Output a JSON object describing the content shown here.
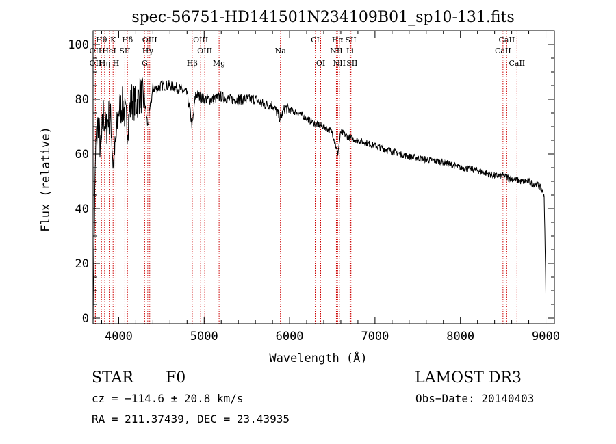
{
  "chart_data": {
    "type": "line",
    "title": "spec-56751-HD141501N234109B01_sp10-131.fits",
    "xlabel": "Wavelength (Å)",
    "ylabel": "Flux (relative)",
    "xlim": [
      3700,
      9100
    ],
    "ylim": [
      -2,
      105
    ],
    "xticks": [
      4000,
      5000,
      6000,
      7000,
      8000,
      9000
    ],
    "xtick_labels": [
      "4000",
      "5000",
      "6000",
      "7000",
      "8000",
      "9000"
    ],
    "yticks": [
      0,
      20,
      40,
      60,
      80,
      100
    ],
    "ytick_labels": [
      "0",
      "20",
      "40",
      "60",
      "80",
      "100"
    ],
    "grid": false,
    "series": [
      {
        "name": "flux",
        "color": "#000000",
        "x": [
          3700,
          3730,
          3760,
          3790,
          3820,
          3850,
          3880,
          3910,
          3935,
          3968,
          4000,
          4050,
          4102,
          4150,
          4200,
          4250,
          4300,
          4340,
          4400,
          4450,
          4500,
          4600,
          4700,
          4800,
          4861,
          4900,
          5000,
          5100,
          5200,
          5300,
          5400,
          5500,
          5600,
          5700,
          5800,
          5890,
          5950,
          6000,
          6100,
          6200,
          6300,
          6400,
          6500,
          6563,
          6600,
          6700,
          6800,
          6900,
          7000,
          7200,
          7400,
          7600,
          7800,
          8000,
          8200,
          8400,
          8500,
          8600,
          8700,
          8800,
          8850,
          8900,
          8950,
          8980,
          9000
        ],
        "y": [
          5,
          62,
          72,
          60,
          75,
          68,
          74,
          72,
          55,
          65,
          76,
          78,
          70,
          80,
          78,
          82,
          80,
          70,
          84,
          84,
          85,
          85,
          84,
          82,
          70,
          82,
          80,
          80,
          81,
          80,
          80,
          80,
          80,
          78,
          78,
          73,
          77,
          76,
          75,
          73,
          71,
          70,
          68,
          60,
          68,
          66,
          65,
          64,
          63,
          61,
          59,
          58,
          57,
          55,
          54,
          52,
          52,
          51,
          50,
          50,
          49,
          49,
          47,
          45,
          10
        ]
      }
    ],
    "annotations": [
      {
        "label": "Hθ",
        "x": 3798,
        "row": 1
      },
      {
        "label": "K",
        "x": 3934,
        "row": 1
      },
      {
        "label": "Hδ",
        "x": 4102,
        "row": 1
      },
      {
        "label": "OIII",
        "x": 4363,
        "row": 1
      },
      {
        "label": "OIII",
        "x": 4959,
        "row": 1
      },
      {
        "label": "CI",
        "x": 6300,
        "row": 1
      },
      {
        "label": "Hα",
        "x": 6563,
        "row": 1
      },
      {
        "label": "SII",
        "x": 6717,
        "row": 1
      },
      {
        "label": "CaII",
        "x": 8542,
        "row": 1
      },
      {
        "label": "OII",
        "x": 3727,
        "row": 2
      },
      {
        "label": "HeI",
        "x": 3889,
        "row": 2
      },
      {
        "label": "SII",
        "x": 4072,
        "row": 2
      },
      {
        "label": "Hγ",
        "x": 4340,
        "row": 2
      },
      {
        "label": "OIII",
        "x": 5007,
        "row": 2
      },
      {
        "label": "Na",
        "x": 5893,
        "row": 2
      },
      {
        "label": "NII",
        "x": 6548,
        "row": 2
      },
      {
        "label": "Li",
        "x": 6708,
        "row": 2
      },
      {
        "label": "CaII",
        "x": 8498,
        "row": 2
      },
      {
        "label": "OII",
        "x": 3727,
        "row": 3
      },
      {
        "label": "Hη",
        "x": 3835,
        "row": 3
      },
      {
        "label": "H",
        "x": 3968,
        "row": 3
      },
      {
        "label": "G",
        "x": 4304,
        "row": 3
      },
      {
        "label": "Hβ",
        "x": 4861,
        "row": 3
      },
      {
        "label": "Mg",
        "x": 5175,
        "row": 3
      },
      {
        "label": "OI",
        "x": 6364,
        "row": 3
      },
      {
        "label": "NII",
        "x": 6583,
        "row": 3
      },
      {
        "label": "SII",
        "x": 6731,
        "row": 3
      },
      {
        "label": "CaII",
        "x": 8662,
        "row": 3
      }
    ]
  },
  "info": {
    "object_class": "STAR",
    "subclass": "F0",
    "survey": "LAMOST DR3",
    "redshift": "cz = −114.6 ± 20.8 km/s",
    "obs_date": "Obs−Date: 20140403",
    "coords": "RA = 211.37439, DEC =  23.43935"
  },
  "colors": {
    "line_marker": "#cc0000",
    "spectrum": "#000000"
  }
}
